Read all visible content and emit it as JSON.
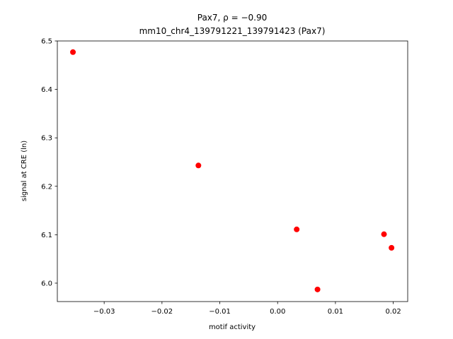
{
  "chart_data": {
    "type": "scatter",
    "title": "Pax7, ρ = −0.90",
    "subtitle": "mm10_chr4_139791221_139791423 (Pax7)",
    "x_label": "motif activity",
    "y_label": "signal at CRE (ln)",
    "color": "#ff0000",
    "x": [
      -0.0354,
      -0.0137,
      0.0033,
      0.0069,
      0.0184,
      0.0197
    ],
    "values": [
      6.477,
      6.243,
      6.111,
      5.987,
      6.101,
      6.073
    ],
    "xlim": [
      -0.0381,
      0.0225
    ],
    "ylim": [
      5.962,
      6.5
    ],
    "xticks": [
      {
        "value": -0.03,
        "label": "−0.03"
      },
      {
        "value": -0.02,
        "label": "−0.02"
      },
      {
        "value": -0.01,
        "label": "−0.01"
      },
      {
        "value": 0,
        "label": "0.00"
      },
      0.01,
      0.02
    ],
    "yticks": [
      {
        "value": 6.0,
        "label": "6.0"
      },
      6.1,
      6.2,
      6.3,
      6.4,
      6.5
    ]
  }
}
